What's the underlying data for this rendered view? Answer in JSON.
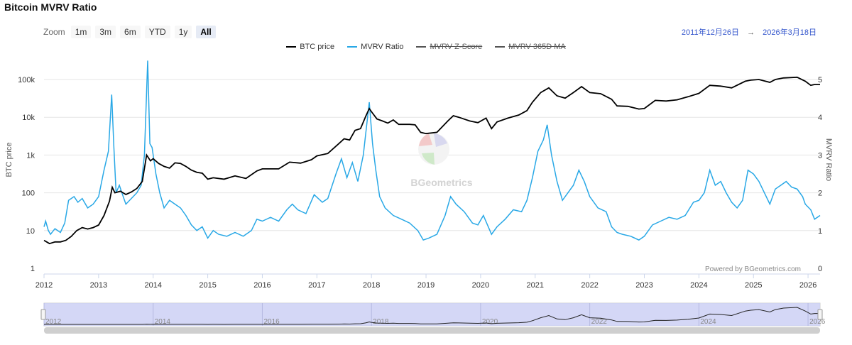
{
  "title": "Bitcoin MVRV Ratio",
  "zoom": {
    "label": "Zoom",
    "buttons": [
      "1m",
      "3m",
      "6m",
      "YTD",
      "1y",
      "All"
    ],
    "active": "All"
  },
  "range": {
    "from": "2011年12月26日",
    "arrow": "→",
    "to": "2026年3月18日"
  },
  "watermark": "BGeometrics",
  "credits": "Powered by BGeometrics.com",
  "colors": {
    "btc": "#000000",
    "mvrv": "#29a8e6",
    "navigator": "#ccd0f5",
    "grid": "#e6e6e6"
  },
  "chart_data": {
    "type": "line",
    "title": "Bitcoin MVRV Ratio",
    "x_range": [
      2012.0,
      2026.22
    ],
    "x_ticks": [
      "2012",
      "2013",
      "2014",
      "2015",
      "2016",
      "2017",
      "2018",
      "2019",
      "2020",
      "2021",
      "2022",
      "2023",
      "2024",
      "2025",
      "2026"
    ],
    "y_left": {
      "label": "BTC price",
      "scale": "log",
      "range": [
        1,
        100000
      ],
      "ticks": [
        "1",
        "10",
        "100",
        "1k",
        "10k",
        "100k"
      ]
    },
    "y_right": {
      "label": "MVRV Ratio",
      "range": [
        0,
        5
      ],
      "ticks": [
        "0",
        "1",
        "2",
        "3",
        "4",
        "5"
      ]
    },
    "legend": [
      {
        "name": "BTC price",
        "visible": true
      },
      {
        "name": "MVRV Ratio",
        "visible": true
      },
      {
        "name": "MVRV Z-Score",
        "visible": false
      },
      {
        "name": "MVRV 365D MA",
        "visible": false
      }
    ],
    "series": [
      {
        "name": "BTC price",
        "axis": "left",
        "points": [
          [
            2012.0,
            5.5
          ],
          [
            2012.05,
            5
          ],
          [
            2012.1,
            4.5
          ],
          [
            2012.2,
            5
          ],
          [
            2012.3,
            5
          ],
          [
            2012.4,
            5.5
          ],
          [
            2012.5,
            7
          ],
          [
            2012.6,
            10
          ],
          [
            2012.7,
            12
          ],
          [
            2012.8,
            11
          ],
          [
            2012.9,
            12
          ],
          [
            2013.0,
            14
          ],
          [
            2013.1,
            25
          ],
          [
            2013.2,
            60
          ],
          [
            2013.25,
            140
          ],
          [
            2013.3,
            100
          ],
          [
            2013.4,
            110
          ],
          [
            2013.5,
            90
          ],
          [
            2013.6,
            105
          ],
          [
            2013.7,
            130
          ],
          [
            2013.8,
            200
          ],
          [
            2013.88,
            1000
          ],
          [
            2013.95,
            700
          ],
          [
            2014.0,
            800
          ],
          [
            2014.1,
            600
          ],
          [
            2014.2,
            500
          ],
          [
            2014.3,
            450
          ],
          [
            2014.4,
            620
          ],
          [
            2014.5,
            600
          ],
          [
            2014.6,
            500
          ],
          [
            2014.7,
            400
          ],
          [
            2014.8,
            350
          ],
          [
            2014.9,
            330
          ],
          [
            2015.0,
            230
          ],
          [
            2015.1,
            250
          ],
          [
            2015.3,
            230
          ],
          [
            2015.5,
            280
          ],
          [
            2015.7,
            240
          ],
          [
            2015.9,
            380
          ],
          [
            2016.0,
            430
          ],
          [
            2016.3,
            430
          ],
          [
            2016.5,
            650
          ],
          [
            2016.7,
            610
          ],
          [
            2016.9,
            750
          ],
          [
            2017.0,
            950
          ],
          [
            2017.2,
            1100
          ],
          [
            2017.4,
            2000
          ],
          [
            2017.5,
            2700
          ],
          [
            2017.6,
            2500
          ],
          [
            2017.7,
            4500
          ],
          [
            2017.8,
            5000
          ],
          [
            2017.9,
            11000
          ],
          [
            2017.96,
            17000
          ],
          [
            2018.0,
            14000
          ],
          [
            2018.1,
            9000
          ],
          [
            2018.2,
            8000
          ],
          [
            2018.3,
            7000
          ],
          [
            2018.4,
            8500
          ],
          [
            2018.5,
            6500
          ],
          [
            2018.7,
            6500
          ],
          [
            2018.8,
            6300
          ],
          [
            2018.9,
            4000
          ],
          [
            2019.0,
            3700
          ],
          [
            2019.2,
            4000
          ],
          [
            2019.4,
            8000
          ],
          [
            2019.5,
            11000
          ],
          [
            2019.6,
            10000
          ],
          [
            2019.8,
            8000
          ],
          [
            2019.95,
            7200
          ],
          [
            2020.1,
            9500
          ],
          [
            2020.2,
            5000
          ],
          [
            2020.3,
            7500
          ],
          [
            2020.5,
            9500
          ],
          [
            2020.7,
            11500
          ],
          [
            2020.85,
            15000
          ],
          [
            2020.95,
            25000
          ],
          [
            2021.1,
            45000
          ],
          [
            2021.25,
            60000
          ],
          [
            2021.4,
            37000
          ],
          [
            2021.55,
            32000
          ],
          [
            2021.7,
            45000
          ],
          [
            2021.85,
            65000
          ],
          [
            2022.0,
            45000
          ],
          [
            2022.2,
            42000
          ],
          [
            2022.4,
            30000
          ],
          [
            2022.5,
            20000
          ],
          [
            2022.7,
            19500
          ],
          [
            2022.9,
            16500
          ],
          [
            2023.0,
            17000
          ],
          [
            2023.2,
            28000
          ],
          [
            2023.4,
            27000
          ],
          [
            2023.6,
            29000
          ],
          [
            2023.8,
            35000
          ],
          [
            2024.0,
            43000
          ],
          [
            2024.2,
            70000
          ],
          [
            2024.4,
            67000
          ],
          [
            2024.6,
            60000
          ],
          [
            2024.85,
            90000
          ],
          [
            2024.95,
            96000
          ],
          [
            2025.1,
            100000
          ],
          [
            2025.3,
            84000
          ],
          [
            2025.4,
            100000
          ],
          [
            2025.55,
            110000
          ],
          [
            2025.8,
            115000
          ],
          [
            2025.95,
            90000
          ],
          [
            2026.05,
            70000
          ],
          [
            2026.12,
            74000
          ],
          [
            2026.22,
            74000
          ]
        ]
      },
      {
        "name": "MVRV Ratio",
        "axis": "right",
        "points": [
          [
            2012.0,
            1.1
          ],
          [
            2012.03,
            1.25
          ],
          [
            2012.08,
            1.0
          ],
          [
            2012.12,
            0.9
          ],
          [
            2012.2,
            1.05
          ],
          [
            2012.3,
            0.95
          ],
          [
            2012.38,
            1.2
          ],
          [
            2012.45,
            1.8
          ],
          [
            2012.55,
            1.9
          ],
          [
            2012.62,
            1.75
          ],
          [
            2012.7,
            1.85
          ],
          [
            2012.8,
            1.6
          ],
          [
            2012.9,
            1.7
          ],
          [
            2013.0,
            1.9
          ],
          [
            2013.1,
            2.6
          ],
          [
            2013.18,
            3.1
          ],
          [
            2013.24,
            4.6
          ],
          [
            2013.28,
            3.2
          ],
          [
            2013.32,
            2.0
          ],
          [
            2013.38,
            2.2
          ],
          [
            2013.45,
            1.9
          ],
          [
            2013.5,
            1.7
          ],
          [
            2013.6,
            1.85
          ],
          [
            2013.7,
            2.0
          ],
          [
            2013.78,
            2.2
          ],
          [
            2013.84,
            3.0
          ],
          [
            2013.9,
            5.5
          ],
          [
            2013.94,
            3.3
          ],
          [
            2013.98,
            3.2
          ],
          [
            2014.05,
            2.5
          ],
          [
            2014.12,
            2.0
          ],
          [
            2014.2,
            1.6
          ],
          [
            2014.3,
            1.8
          ],
          [
            2014.4,
            1.7
          ],
          [
            2014.5,
            1.6
          ],
          [
            2014.6,
            1.4
          ],
          [
            2014.7,
            1.15
          ],
          [
            2014.8,
            1.0
          ],
          [
            2014.9,
            1.1
          ],
          [
            2015.0,
            0.8
          ],
          [
            2015.1,
            1.0
          ],
          [
            2015.2,
            0.9
          ],
          [
            2015.35,
            0.85
          ],
          [
            2015.5,
            0.95
          ],
          [
            2015.65,
            0.85
          ],
          [
            2015.8,
            1.0
          ],
          [
            2015.9,
            1.3
          ],
          [
            2016.0,
            1.25
          ],
          [
            2016.15,
            1.35
          ],
          [
            2016.3,
            1.25
          ],
          [
            2016.45,
            1.55
          ],
          [
            2016.55,
            1.7
          ],
          [
            2016.65,
            1.55
          ],
          [
            2016.8,
            1.45
          ],
          [
            2016.95,
            1.95
          ],
          [
            2017.1,
            1.75
          ],
          [
            2017.2,
            1.85
          ],
          [
            2017.35,
            2.5
          ],
          [
            2017.45,
            2.9
          ],
          [
            2017.55,
            2.4
          ],
          [
            2017.65,
            2.8
          ],
          [
            2017.75,
            2.3
          ],
          [
            2017.85,
            3.0
          ],
          [
            2017.96,
            4.4
          ],
          [
            2018.02,
            3.3
          ],
          [
            2018.08,
            2.6
          ],
          [
            2018.15,
            1.9
          ],
          [
            2018.25,
            1.6
          ],
          [
            2018.4,
            1.4
          ],
          [
            2018.55,
            1.3
          ],
          [
            2018.7,
            1.2
          ],
          [
            2018.85,
            1.0
          ],
          [
            2018.95,
            0.75
          ],
          [
            2019.05,
            0.8
          ],
          [
            2019.2,
            0.9
          ],
          [
            2019.35,
            1.4
          ],
          [
            2019.45,
            1.9
          ],
          [
            2019.55,
            1.7
          ],
          [
            2019.7,
            1.5
          ],
          [
            2019.85,
            1.2
          ],
          [
            2019.95,
            1.15
          ],
          [
            2020.05,
            1.4
          ],
          [
            2020.2,
            0.9
          ],
          [
            2020.3,
            1.1
          ],
          [
            2020.45,
            1.3
          ],
          [
            2020.6,
            1.55
          ],
          [
            2020.75,
            1.5
          ],
          [
            2020.85,
            1.8
          ],
          [
            2020.95,
            2.4
          ],
          [
            2021.05,
            3.1
          ],
          [
            2021.15,
            3.4
          ],
          [
            2021.22,
            3.8
          ],
          [
            2021.3,
            3.0
          ],
          [
            2021.4,
            2.3
          ],
          [
            2021.5,
            1.8
          ],
          [
            2021.6,
            2.0
          ],
          [
            2021.7,
            2.2
          ],
          [
            2021.8,
            2.6
          ],
          [
            2021.9,
            2.3
          ],
          [
            2022.0,
            1.9
          ],
          [
            2022.15,
            1.6
          ],
          [
            2022.3,
            1.5
          ],
          [
            2022.4,
            1.1
          ],
          [
            2022.5,
            0.95
          ],
          [
            2022.6,
            0.9
          ],
          [
            2022.75,
            0.85
          ],
          [
            2022.9,
            0.75
          ],
          [
            2023.0,
            0.85
          ],
          [
            2023.15,
            1.15
          ],
          [
            2023.3,
            1.25
          ],
          [
            2023.45,
            1.35
          ],
          [
            2023.6,
            1.3
          ],
          [
            2023.75,
            1.4
          ],
          [
            2023.9,
            1.75
          ],
          [
            2024.0,
            1.8
          ],
          [
            2024.1,
            2.0
          ],
          [
            2024.2,
            2.6
          ],
          [
            2024.3,
            2.2
          ],
          [
            2024.4,
            2.3
          ],
          [
            2024.5,
            2.0
          ],
          [
            2024.6,
            1.75
          ],
          [
            2024.7,
            1.6
          ],
          [
            2024.8,
            1.8
          ],
          [
            2024.9,
            2.6
          ],
          [
            2025.0,
            2.5
          ],
          [
            2025.1,
            2.3
          ],
          [
            2025.2,
            2.0
          ],
          [
            2025.3,
            1.7
          ],
          [
            2025.4,
            2.1
          ],
          [
            2025.5,
            2.2
          ],
          [
            2025.6,
            2.3
          ],
          [
            2025.7,
            2.15
          ],
          [
            2025.8,
            2.1
          ],
          [
            2025.9,
            1.9
          ],
          [
            2025.95,
            1.7
          ],
          [
            2026.05,
            1.55
          ],
          [
            2026.12,
            1.3
          ],
          [
            2026.22,
            1.4
          ]
        ]
      }
    ],
    "navigator_ticks": [
      "2012",
      "2014",
      "2016",
      "2018",
      "2020",
      "2022",
      "2024",
      "2026"
    ]
  }
}
